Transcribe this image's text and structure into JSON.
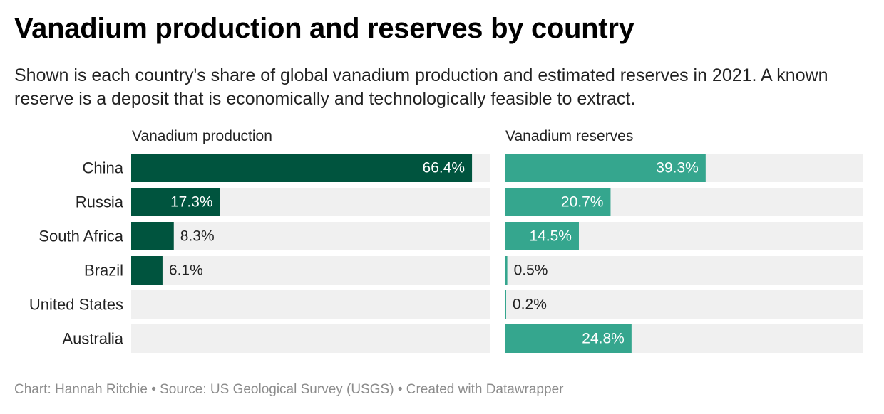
{
  "title": "Vanadium production and reserves by country",
  "subtitle": "Shown is each country's share of global vanadium production and estimated reserves in 2021. A known reserve is a deposit that is economically and technologically feasible to extract.",
  "footer": "Chart: Hannah Ritchie • Source: US Geological Survey (USGS) • Created with Datawrapper",
  "chart_data": {
    "type": "bar",
    "orientation": "horizontal",
    "categories": [
      "China",
      "Russia",
      "South Africa",
      "Brazil",
      "United States",
      "Australia"
    ],
    "xlim": [
      0,
      70
    ],
    "grid": false,
    "unit": "%",
    "panels": [
      {
        "name": "Vanadium production",
        "color": "#00543e",
        "values": [
          66.4,
          17.3,
          8.3,
          6.1,
          null,
          null
        ],
        "labels": [
          "66.4%",
          "17.3%",
          "8.3%",
          "6.1%",
          "",
          ""
        ]
      },
      {
        "name": "Vanadium reserves",
        "color": "#35a68e",
        "values": [
          39.3,
          20.7,
          14.5,
          0.5,
          0.2,
          24.8
        ],
        "labels": [
          "39.3%",
          "20.7%",
          "14.5%",
          "0.5%",
          "0.2%",
          "24.8%"
        ]
      }
    ],
    "background_bar_color": "#f0f0f0"
  }
}
